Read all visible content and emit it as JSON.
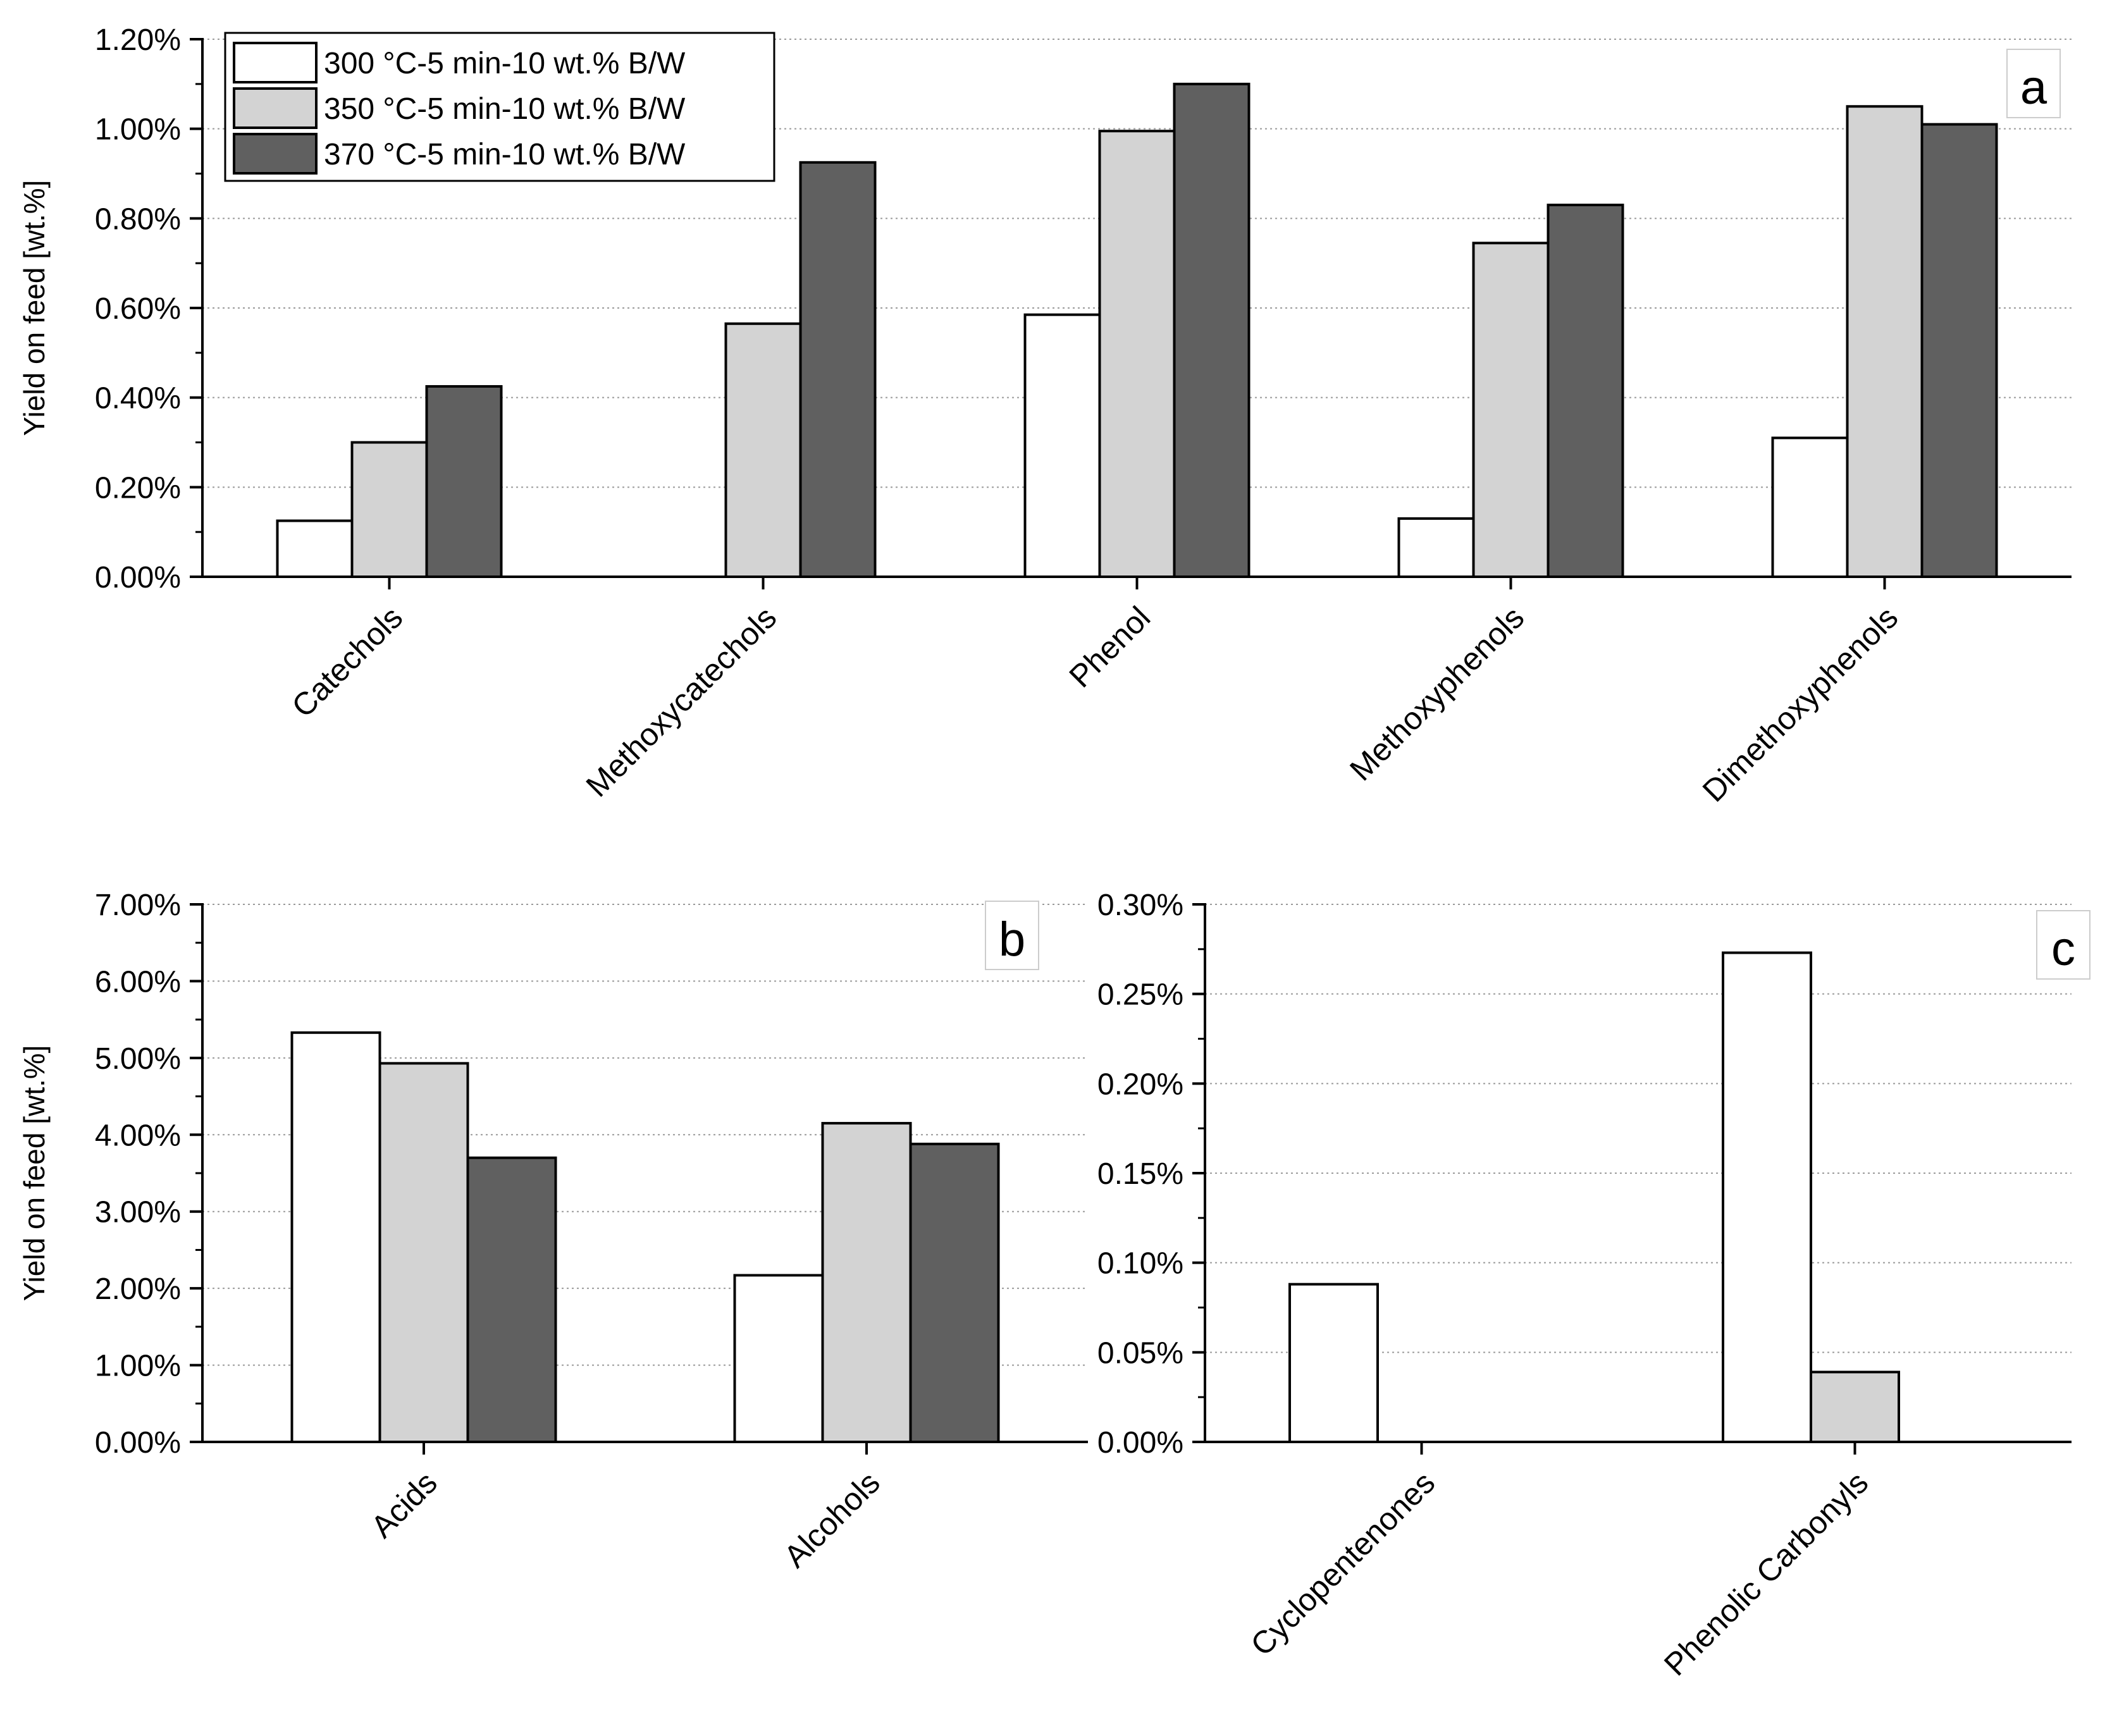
{
  "legend": [
    {
      "label": "300 °C-5 min-10 wt.% B/W",
      "color": "#ffffff"
    },
    {
      "label": "350 °C-5 min-10 wt.% B/W",
      "color": "#d3d3d3"
    },
    {
      "label": "370 °C-5 min-10 wt.% B/W",
      "color": "#606060"
    }
  ],
  "chart_data": [
    {
      "id": "a",
      "type": "bar",
      "panel_label": "a",
      "ylabel": "Yield on feed [wt.%]",
      "ylim": [
        0,
        1.2
      ],
      "yticks": [
        0,
        0.2,
        0.4,
        0.6,
        0.8,
        1.0,
        1.2
      ],
      "ytick_labels": [
        "0.00%",
        "0.20%",
        "0.40%",
        "0.60%",
        "0.80%",
        "1.00%",
        "1.20%"
      ],
      "categories": [
        "Catechols",
        "Methoxycatechols",
        "Phenol",
        "Methoxyphenols",
        "Dimethoxyphenols"
      ],
      "series": [
        {
          "name": "300 °C-5 min-10 wt.% B/W",
          "values": [
            0.125,
            0,
            0.585,
            0.13,
            0.31
          ]
        },
        {
          "name": "350 °C-5 min-10 wt.% B/W",
          "values": [
            0.3,
            0.565,
            0.995,
            0.745,
            1.05
          ]
        },
        {
          "name": "370 °C-5 min-10 wt.% B/W",
          "values": [
            0.425,
            0.925,
            1.1,
            0.83,
            1.01
          ]
        }
      ],
      "grid": true
    },
    {
      "id": "b",
      "type": "bar",
      "panel_label": "b",
      "ylabel": "Yield on feed [wt.%]",
      "ylim": [
        0,
        7
      ],
      "yticks": [
        0,
        1,
        2,
        3,
        4,
        5,
        6,
        7
      ],
      "ytick_labels": [
        "0.00%",
        "1.00%",
        "2.00%",
        "3.00%",
        "4.00%",
        "5.00%",
        "6.00%",
        "7.00%"
      ],
      "categories": [
        "Acids",
        "Alcohols"
      ],
      "series": [
        {
          "name": "300 °C-5 min-10 wt.% B/W",
          "values": [
            5.33,
            2.17
          ]
        },
        {
          "name": "350 °C-5 min-10 wt.% B/W",
          "values": [
            4.93,
            4.15
          ]
        },
        {
          "name": "370 °C-5 min-10 wt.% B/W",
          "values": [
            3.7,
            3.88
          ]
        }
      ],
      "grid": true
    },
    {
      "id": "c",
      "type": "bar",
      "panel_label": "c",
      "ylabel": "",
      "ylim": [
        0,
        0.3
      ],
      "yticks": [
        0,
        0.05,
        0.1,
        0.15,
        0.2,
        0.25,
        0.3
      ],
      "ytick_labels": [
        "0.00%",
        "0.05%",
        "0.10%",
        "0.15%",
        "0.20%",
        "0.25%",
        "0.30%"
      ],
      "categories": [
        "Cyclopentenones",
        "Phenolic Carbonyls"
      ],
      "series": [
        {
          "name": "300 °C-5 min-10 wt.% B/W",
          "values": [
            0.088,
            0.273
          ]
        },
        {
          "name": "350 °C-5 min-10 wt.% B/W",
          "values": [
            0,
            0.039
          ]
        },
        {
          "name": "370 °C-5 min-10 wt.% B/W",
          "values": [
            0,
            0
          ]
        }
      ],
      "grid": true
    }
  ]
}
